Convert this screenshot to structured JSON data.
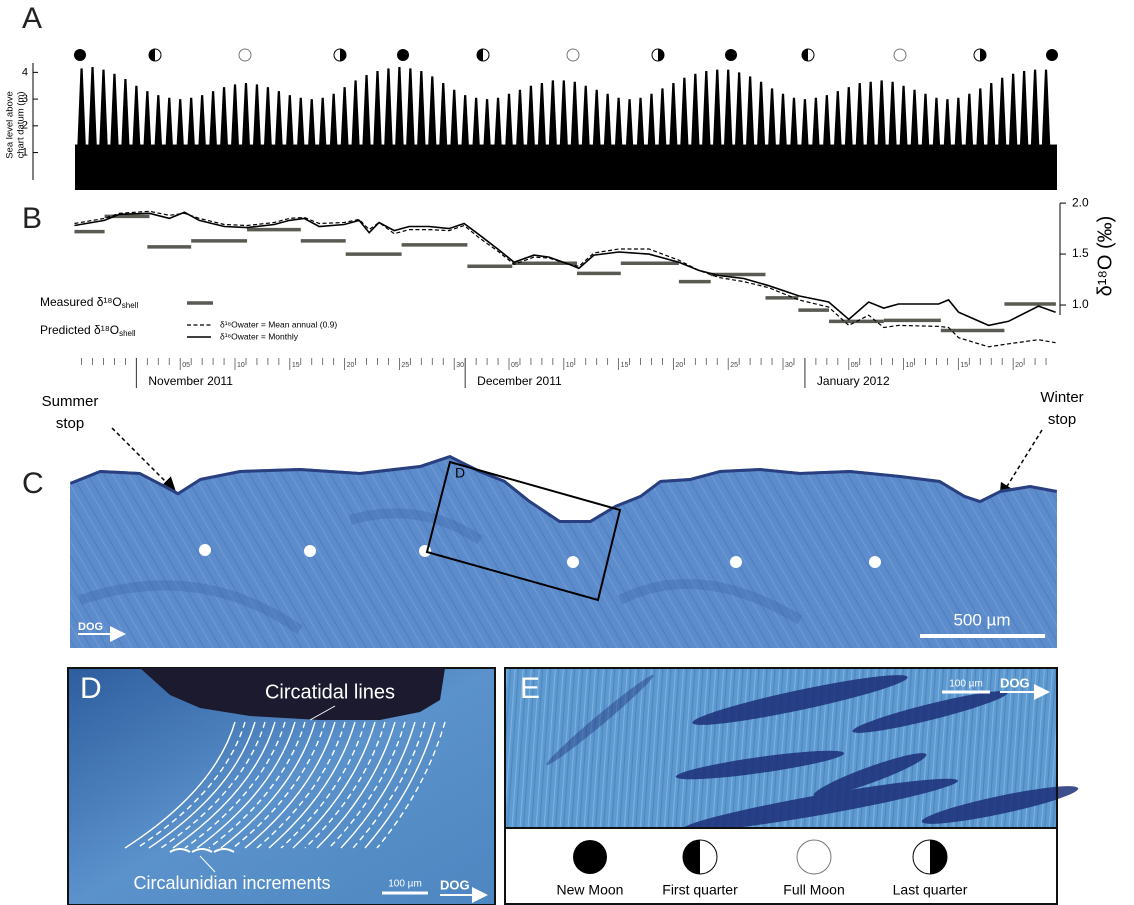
{
  "panels": {
    "a": "A",
    "b": "B",
    "c": "C",
    "d": "D",
    "e": "E"
  },
  "chart_data": [
    {
      "type": "area",
      "ylabel": [
        "Sea level above",
        "chart datum (m)"
      ],
      "color": "#000000",
      "xlim": [
        -5.6,
        84
      ],
      "ylim": [
        -0.4,
        4.35
      ],
      "yticks": [
        1,
        2,
        3,
        4
      ],
      "x": [
        -5,
        -4,
        -3,
        -2,
        -1,
        0,
        1,
        2,
        3,
        4,
        5,
        6,
        7,
        8,
        9,
        10,
        11,
        12,
        13,
        14,
        15,
        16,
        17,
        18,
        19,
        20,
        21,
        22,
        23,
        24,
        25,
        26,
        27,
        28,
        29,
        30,
        31,
        32,
        33,
        34,
        35,
        36,
        37,
        38,
        39,
        40,
        41,
        42,
        43,
        44,
        45,
        46,
        47,
        48,
        49,
        50,
        51,
        52,
        53,
        54,
        55,
        56,
        57,
        58,
        59,
        60,
        61,
        62,
        63,
        64,
        65,
        66,
        67,
        68,
        69,
        70,
        71,
        72,
        73,
        74,
        75,
        76,
        77,
        78,
        79,
        80,
        81,
        82,
        83
      ],
      "values": [
        4.15,
        4.2,
        4.1,
        3.95,
        3.75,
        3.5,
        3.3,
        3.15,
        3.05,
        3.0,
        3.05,
        3.15,
        3.3,
        3.45,
        3.55,
        3.6,
        3.55,
        3.45,
        3.3,
        3.15,
        3.05,
        3.0,
        3.05,
        3.2,
        3.45,
        3.7,
        3.9,
        4.05,
        4.15,
        4.2,
        4.15,
        4.05,
        3.85,
        3.6,
        3.35,
        3.15,
        3.05,
        3.0,
        3.05,
        3.2,
        3.35,
        3.5,
        3.6,
        3.7,
        3.7,
        3.65,
        3.5,
        3.35,
        3.2,
        3.05,
        3.0,
        3.05,
        3.2,
        3.4,
        3.6,
        3.8,
        3.95,
        4.05,
        4.1,
        4.1,
        4.0,
        3.85,
        3.65,
        3.4,
        3.2,
        3.05,
        3.0,
        3.05,
        3.15,
        3.3,
        3.45,
        3.6,
        3.65,
        3.7,
        3.65,
        3.5,
        3.35,
        3.2,
        3.05,
        3.0,
        3.05,
        3.2,
        3.4,
        3.6,
        3.8,
        3.95,
        4.05,
        4.1,
        4.1
      ]
    },
    {
      "type": "line",
      "ylabel": "δ¹⁸O (‰)",
      "xlim": [
        -5.6,
        84
      ],
      "y2lim": [
        0.5,
        2.05
      ],
      "y2ticks": [
        {
          "value": 1,
          "label": "1.0"
        },
        {
          "value": 1.5,
          "label": "1.5"
        },
        {
          "value": 2,
          "label": "2.0"
        }
      ],
      "xticks": [
        {
          "value": 4,
          "label": "05"
        },
        {
          "value": 9,
          "label": "10"
        },
        {
          "value": 14,
          "label": "15"
        },
        {
          "value": 19,
          "label": "20"
        },
        {
          "value": 24,
          "label": "25"
        },
        {
          "value": 29,
          "label": "30"
        },
        {
          "value": 34,
          "label": "05"
        },
        {
          "value": 39,
          "label": "10"
        },
        {
          "value": 44,
          "label": "15"
        },
        {
          "value": 49,
          "label": "20"
        },
        {
          "value": 54,
          "label": "25"
        },
        {
          "value": 59,
          "label": "30"
        },
        {
          "value": 65,
          "label": "05"
        },
        {
          "value": 70,
          "label": "10"
        },
        {
          "value": 75,
          "label": "15"
        },
        {
          "value": 80,
          "label": "20"
        }
      ],
      "xminorticks": [
        -5,
        -4,
        -3,
        -2,
        -1,
        1,
        2,
        3,
        5,
        6,
        7,
        8,
        10,
        11,
        12,
        13,
        15,
        16,
        17,
        18,
        20,
        21,
        22,
        23,
        25,
        26,
        27,
        28,
        31,
        32,
        33,
        35,
        36,
        37,
        38,
        40,
        41,
        42,
        43,
        45,
        46,
        47,
        48,
        50,
        51,
        52,
        53,
        55,
        56,
        57,
        58,
        60,
        62,
        63,
        64,
        66,
        67,
        68,
        69,
        71,
        72,
        73,
        74,
        76,
        77,
        78,
        79,
        81,
        82,
        83
      ],
      "months": [
        {
          "value": 0,
          "label": "November 2011"
        },
        {
          "value": 30,
          "label": "December 2011"
        },
        {
          "value": 61,
          "label": "January 2012"
        }
      ],
      "predicted_label": "Predicted δ¹⁸O",
      "predicted_label_sub": "shell",
      "series": [
        {
          "name": "Measured δ¹⁸O",
          "name_sub": "shell",
          "color": "#5a5a52",
          "axis": "y2",
          "x_start": [
            -5.65,
            -2.9,
            1.0,
            5.0,
            10.1,
            15.0,
            19.1,
            24.2,
            30.2,
            34.3,
            40.2,
            44.2,
            49.5,
            52.4,
            57.4,
            60.4,
            63.2,
            68.2,
            73.4,
            79.2
          ],
          "x_end": [
            -2.9,
            1.2,
            5.0,
            10.1,
            15.0,
            19.1,
            24.2,
            30.2,
            34.3,
            40.2,
            44.2,
            49.5,
            52.4,
            57.4,
            60.4,
            63.2,
            68.2,
            73.4,
            79.2,
            83.9
          ],
          "values": [
            1.72,
            1.87,
            1.57,
            1.63,
            1.74,
            1.63,
            1.5,
            1.59,
            1.38,
            1.41,
            1.31,
            1.41,
            1.23,
            1.3,
            1.07,
            0.95,
            0.84,
            0.85,
            0.75,
            1.01
          ]
        },
        {
          "name": "δ¹⁸Owater = Mean annual (0.9)",
          "color": "#000000",
          "axis": "y2",
          "dash": true,
          "x": [
            -5.65,
            -2.92,
            -1.55,
            1.19,
            3.01,
            4.38,
            5.74,
            8.02,
            10.12,
            12.58,
            13.95,
            15.31,
            16.68,
            18.96,
            20.33,
            21.24,
            22.15,
            23.52,
            24.89,
            26.71,
            28.53,
            29.9,
            31.27,
            33.09,
            34.46,
            36.28,
            37.65,
            39.47,
            40.38,
            41.75,
            44.03,
            46.76,
            49.5,
            51.32,
            53.14,
            55.42,
            57.7,
            60.44,
            63.17,
            65.0,
            66.82,
            68.19,
            69.55,
            73.2,
            74.11,
            75.02,
            77.76,
            79.58,
            82.31,
            83.87
          ],
          "values": [
            1.8,
            1.85,
            1.9,
            1.92,
            1.88,
            1.9,
            1.85,
            1.79,
            1.78,
            1.81,
            1.85,
            1.86,
            1.8,
            1.81,
            1.84,
            1.74,
            1.81,
            1.7,
            1.74,
            1.74,
            1.73,
            1.78,
            1.66,
            1.52,
            1.4,
            1.47,
            1.46,
            1.4,
            1.38,
            1.51,
            1.55,
            1.55,
            1.44,
            1.34,
            1.27,
            1.23,
            1.17,
            1.05,
            0.98,
            0.8,
            0.9,
            0.78,
            0.8,
            0.79,
            0.78,
            0.68,
            0.59,
            0.62,
            0.66,
            0.63
          ]
        },
        {
          "name": "δ¹⁸Owater = Monthly",
          "color": "#000000",
          "axis": "y2",
          "dash": false,
          "x": [
            -5.65,
            -2.92,
            -1.55,
            1.19,
            3.01,
            4.38,
            5.74,
            8.02,
            10.12,
            12.58,
            13.95,
            15.31,
            16.68,
            18.96,
            20.33,
            21.24,
            22.15,
            23.52,
            24.89,
            26.71,
            28.53,
            29.9,
            31.27,
            33.09,
            34.46,
            36.28,
            37.65,
            39.47,
            40.38,
            41.75,
            44.03,
            46.76,
            49.5,
            51.32,
            53.14,
            55.42,
            57.7,
            60.44,
            63.17,
            65.0,
            66.82,
            68.19,
            69.55,
            73.2,
            74.11,
            75.02,
            77.76,
            79.58,
            82.31,
            83.87
          ],
          "values": [
            1.78,
            1.83,
            1.89,
            1.9,
            1.85,
            1.91,
            1.83,
            1.77,
            1.76,
            1.79,
            1.83,
            1.85,
            1.77,
            1.79,
            1.83,
            1.71,
            1.81,
            1.73,
            1.77,
            1.77,
            1.75,
            1.8,
            1.69,
            1.54,
            1.42,
            1.49,
            1.47,
            1.4,
            1.36,
            1.49,
            1.52,
            1.5,
            1.42,
            1.34,
            1.29,
            1.26,
            1.19,
            1.09,
            1.03,
            0.86,
            1.03,
            0.97,
            1.01,
            1.01,
            1.05,
            0.93,
            0.8,
            0.84,
            0.99,
            0.93
          ]
        }
      ]
    }
  ],
  "panel_c": {
    "summer_stop": [
      "Summer",
      "stop"
    ],
    "winter_stop": [
      "Winter",
      "stop"
    ],
    "box_label": "D",
    "direction": "DOG",
    "scale": "500 µm"
  },
  "panel_d": {
    "circatidal": "Circatidal lines",
    "circalunidian": "Circalunidian increments",
    "scale": "100 µm",
    "direction": "DOG"
  },
  "panel_e": {
    "scale": "100 µm",
    "direction": "DOG"
  },
  "moon_legend": [
    "New Moon",
    "First quarter",
    "Full Moon",
    "Last quarter"
  ]
}
